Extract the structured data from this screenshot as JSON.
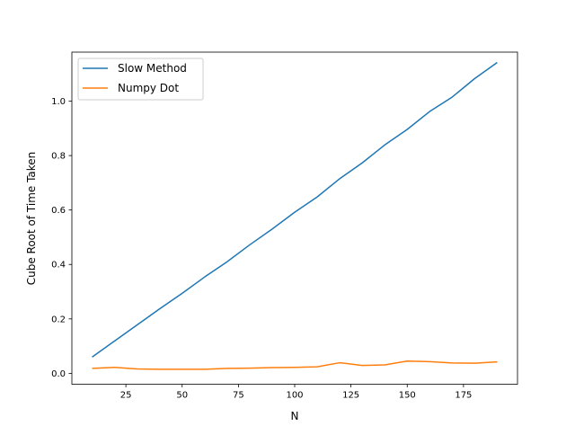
{
  "chart_data": {
    "type": "line",
    "xlabel": "N",
    "ylabel": "Cube Root of Time Taken",
    "xlim": [
      1,
      199
    ],
    "ylim": [
      -0.04,
      1.18
    ],
    "xticks": [
      25,
      50,
      75,
      100,
      125,
      150,
      175
    ],
    "xtick_labels": [
      "25",
      "50",
      "75",
      "100",
      "125",
      "150",
      "175"
    ],
    "yticks": [
      0.0,
      0.2,
      0.4,
      0.6,
      0.8,
      1.0
    ],
    "ytick_labels": [
      "0.0",
      "0.2",
      "0.4",
      "0.6",
      "0.8",
      "1.0"
    ],
    "grid": false,
    "legend_position": "top-left",
    "x": [
      10,
      20,
      30,
      40,
      50,
      60,
      70,
      80,
      90,
      100,
      110,
      120,
      130,
      140,
      150,
      160,
      170,
      180,
      190
    ],
    "series": [
      {
        "name": "Slow Method",
        "color": "#1f77b4",
        "values": [
          0.06,
          0.119,
          0.178,
          0.237,
          0.294,
          0.354,
          0.41,
          0.472,
          0.53,
          0.592,
          0.648,
          0.715,
          0.773,
          0.839,
          0.896,
          0.962,
          1.015,
          1.083,
          1.142
        ]
      },
      {
        "name": "Numpy Dot",
        "color": "#ff7f0e",
        "values": [
          0.018,
          0.022,
          0.016,
          0.015,
          0.015,
          0.015,
          0.018,
          0.019,
          0.021,
          0.022,
          0.024,
          0.039,
          0.029,
          0.031,
          0.045,
          0.043,
          0.038,
          0.037,
          0.042
        ]
      }
    ]
  }
}
